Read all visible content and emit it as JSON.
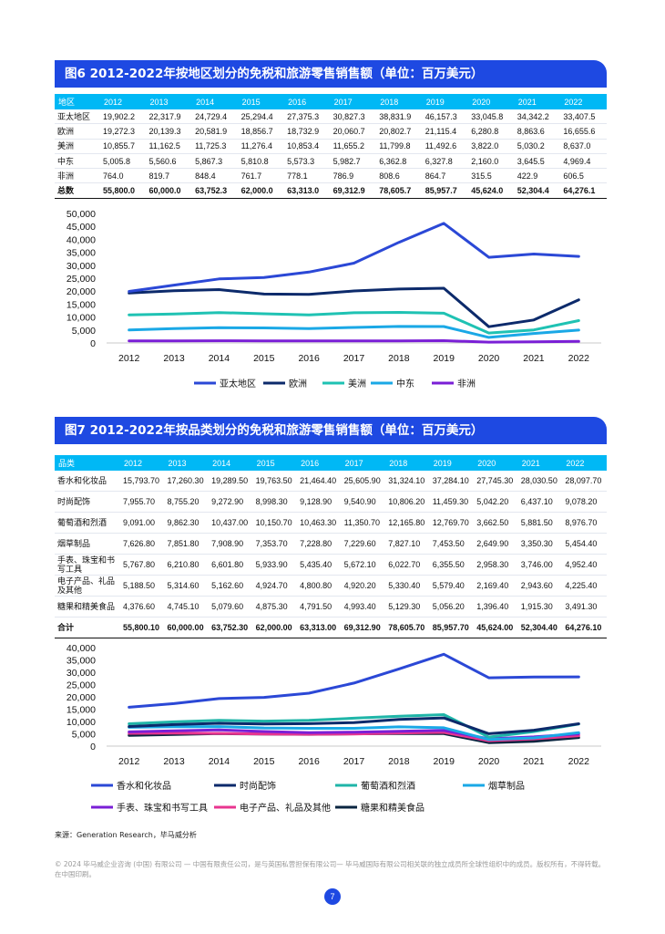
{
  "figure6": {
    "title": "图6 2012-2022年按地区划分的免税和旅游零售销售额（单位：百万美元）",
    "table": {
      "headers": [
        "地区",
        "2012",
        "2013",
        "2014",
        "2015",
        "2016",
        "2017",
        "2018",
        "2019",
        "2020",
        "2021",
        "2022"
      ],
      "rows": [
        [
          "亚太地区",
          "19,902.2",
          "22,317.9",
          "24,729.4",
          "25,294.4",
          "27,375.3",
          "30,827.3",
          "38,831.9",
          "46,157.3",
          "33,045.8",
          "34,342.2",
          "33,407.5"
        ],
        [
          "欧洲",
          "19,272.3",
          "20,139.3",
          "20,581.9",
          "18,856.7",
          "18,732.9",
          "20,060.7",
          "20,802.7",
          "21,115.4",
          "6,280.8",
          "8,863.6",
          "16,655.6"
        ],
        [
          "美洲",
          "10,855.7",
          "11,162.5",
          "11,725.3",
          "11,276.4",
          "10,853.4",
          "11,655.2",
          "11,799.8",
          "11,492.6",
          "3,822.0",
          "5,030.2",
          "8,637.0"
        ],
        [
          "中东",
          "5,005.8",
          "5,560.6",
          "5,867.3",
          "5,810.8",
          "5,573.3",
          "5,982.7",
          "6,362.8",
          "6,327.8",
          "2,160.0",
          "3,645.5",
          "4,969.4"
        ],
        [
          "非洲",
          "764.0",
          "819.7",
          "848.4",
          "761.7",
          "778.1",
          "786.9",
          "808.6",
          "864.7",
          "315.5",
          "422.9",
          "606.5"
        ]
      ],
      "total": [
        "总数",
        "55,800.0",
        "60,000.0",
        "63,752.3",
        "62,000.0",
        "63,313.0",
        "69,312.9",
        "78,605.7",
        "85,957.7",
        "45,624.0",
        "52,304.4",
        "64,276.1"
      ]
    }
  },
  "figure7": {
    "title": "图7 2012-2022年按品类划分的免税和旅游零售销售额（单位：百万美元）",
    "table": {
      "headers": [
        "品类",
        "2012",
        "2013",
        "2014",
        "2015",
        "2016",
        "2017",
        "2018",
        "2019",
        "2020",
        "2021",
        "2022"
      ],
      "rows": [
        [
          "香水和化妆品",
          "15,793.70",
          "17,260.30",
          "19,289.50",
          "19,763.50",
          "21,464.40",
          "25,605.90",
          "31,324.10",
          "37,284.10",
          "27,745.30",
          "28,030.50",
          "28,097.70"
        ],
        [
          "时尚配饰",
          "7,955.70",
          "8,755.20",
          "9,272.90",
          "8,998.30",
          "9,128.90",
          "9,540.90",
          "10,806.20",
          "11,459.30",
          "5,042.20",
          "6,437.10",
          "9,078.20"
        ],
        [
          "葡萄酒和烈酒",
          "9,091.00",
          "9,862.30",
          "10,437.00",
          "10,150.70",
          "10,463.30",
          "11,350.70",
          "12,165.80",
          "12,769.70",
          "3,662.50",
          "5,881.50",
          "8,976.70"
        ],
        [
          "烟草制品",
          "7,626.80",
          "7,851.80",
          "7,908.90",
          "7,353.70",
          "7,228.80",
          "7,229.60",
          "7,827.10",
          "7,453.50",
          "2,649.90",
          "3,350.30",
          "5,454.40"
        ],
        [
          "手表、珠宝和书写工具",
          "5,767.80",
          "6,210.80",
          "6,601.80",
          "5,933.90",
          "5,435.40",
          "5,672.10",
          "6,022.70",
          "6,355.50",
          "2,958.30",
          "3,746.00",
          "4,952.40"
        ],
        [
          "电子产品、礼品及其他",
          "5,188.50",
          "5,314.60",
          "5,162.60",
          "4,924.70",
          "4,800.80",
          "4,920.20",
          "5,330.40",
          "5,579.40",
          "2,169.40",
          "2,943.60",
          "4,225.40"
        ],
        [
          "糖果和精美食品",
          "4,376.60",
          "4,745.10",
          "5,079.60",
          "4,875.30",
          "4,791.50",
          "4,993.40",
          "5,129.30",
          "5,056.20",
          "1,396.40",
          "1,915.30",
          "3,491.30"
        ]
      ],
      "total": [
        "合计",
        "55,800.10",
        "60,000.00",
        "63,752.30",
        "62,000.00",
        "63,313.00",
        "69,312.90",
        "78,605.70",
        "85,957.70",
        "45,624.00",
        "52,304.40",
        "64,276.10"
      ]
    }
  },
  "chart_data": [
    {
      "type": "line",
      "x": [
        "2012",
        "2013",
        "2014",
        "2015",
        "2016",
        "2017",
        "2018",
        "2019",
        "2020",
        "2021",
        "2022"
      ],
      "ylim": [
        0,
        50000
      ],
      "yticks": [
        "0",
        "5,000",
        "10,000",
        "15,000",
        "20,000",
        "25,000",
        "30,000",
        "35,000",
        "40,000",
        "45,000",
        "50,000"
      ],
      "legend_position": "bottom",
      "series": [
        {
          "name": "亚太地区",
          "color": "#2b48d6",
          "values": [
            19902.2,
            22317.9,
            24729.4,
            25294.4,
            27375.3,
            30827.3,
            38831.9,
            46157.3,
            33045.8,
            34342.2,
            33407.5
          ]
        },
        {
          "name": "欧洲",
          "color": "#0c2a6b",
          "values": [
            19272.3,
            20139.3,
            20581.9,
            18856.7,
            18732.9,
            20060.7,
            20802.7,
            21115.4,
            6280.8,
            8863.6,
            16655.6
          ]
        },
        {
          "name": "美洲",
          "color": "#1fc2b3",
          "values": [
            10855.7,
            11162.5,
            11725.3,
            11276.4,
            10853.4,
            11655.2,
            11799.8,
            11492.6,
            3822.0,
            5030.2,
            8637.0
          ]
        },
        {
          "name": "中东",
          "color": "#1aa8e6",
          "values": [
            5005.8,
            5560.6,
            5867.3,
            5810.8,
            5573.3,
            5982.7,
            6362.8,
            6327.8,
            2160.0,
            3645.5,
            4969.4
          ]
        },
        {
          "name": "非洲",
          "color": "#7a1fd6",
          "values": [
            764.0,
            819.7,
            848.4,
            761.7,
            778.1,
            786.9,
            808.6,
            864.7,
            315.5,
            422.9,
            606.5
          ]
        }
      ]
    },
    {
      "type": "line",
      "x": [
        "2012",
        "2013",
        "2014",
        "2015",
        "2016",
        "2017",
        "2018",
        "2019",
        "2020",
        "2021",
        "2022"
      ],
      "ylim": [
        0,
        40000
      ],
      "yticks": [
        "0",
        "5,000",
        "10,000",
        "15,000",
        "20,000",
        "25,000",
        "30,000",
        "35,000",
        "40,000"
      ],
      "legend_position": "bottom",
      "series": [
        {
          "name": "香水和化妆品",
          "color": "#2b48d6",
          "values": [
            15793.7,
            17260.3,
            19289.5,
            19763.5,
            21464.4,
            25605.9,
            31324.1,
            37284.1,
            27745.3,
            28030.5,
            28097.7
          ]
        },
        {
          "name": "时尚配饰",
          "color": "#0c2a6b",
          "values": [
            7955.7,
            8755.2,
            9272.9,
            8998.3,
            9128.9,
            9540.9,
            10806.2,
            11459.3,
            5042.2,
            6437.1,
            9078.2
          ]
        },
        {
          "name": "葡萄酒和烈酒",
          "color": "#1fb5a8",
          "values": [
            9091.0,
            9862.3,
            10437.0,
            10150.7,
            10463.3,
            11350.7,
            12165.8,
            12769.7,
            3662.5,
            5881.5,
            8976.7
          ]
        },
        {
          "name": "烟草制品",
          "color": "#1aa8e6",
          "values": [
            7626.8,
            7851.8,
            7908.9,
            7353.7,
            7228.8,
            7229.6,
            7827.1,
            7453.5,
            2649.9,
            3350.3,
            5454.4
          ]
        },
        {
          "name": "手表、珠宝和书写工具",
          "color": "#7a1fd6",
          "values": [
            5767.8,
            6210.8,
            6601.8,
            5933.9,
            5435.4,
            5672.1,
            6022.7,
            6355.5,
            2958.3,
            3746.0,
            4952.4
          ]
        },
        {
          "name": "电子产品、礼品及其他",
          "color": "#e8358f",
          "values": [
            5188.5,
            5314.6,
            5162.6,
            4924.7,
            4800.8,
            4920.2,
            5330.4,
            5579.4,
            2169.4,
            2943.6,
            4225.4
          ]
        },
        {
          "name": "糖果和精美食品",
          "color": "#0a2540",
          "values": [
            4376.6,
            4745.1,
            5079.6,
            4875.3,
            4791.5,
            4993.4,
            5129.3,
            5056.2,
            1396.4,
            1915.3,
            3491.3
          ]
        }
      ]
    }
  ],
  "source": "来源：Generation Research，毕马威分析",
  "footer": "© 2024 毕马威企业咨询 (中国) 有限公司 — 中国有限责任公司，是与英国私营担保有限公司— 毕马威国际有限公司相关联的独立成员所全球性组织中的成员。版权所有，不得转载。在中国印刷。",
  "page_number": "7"
}
